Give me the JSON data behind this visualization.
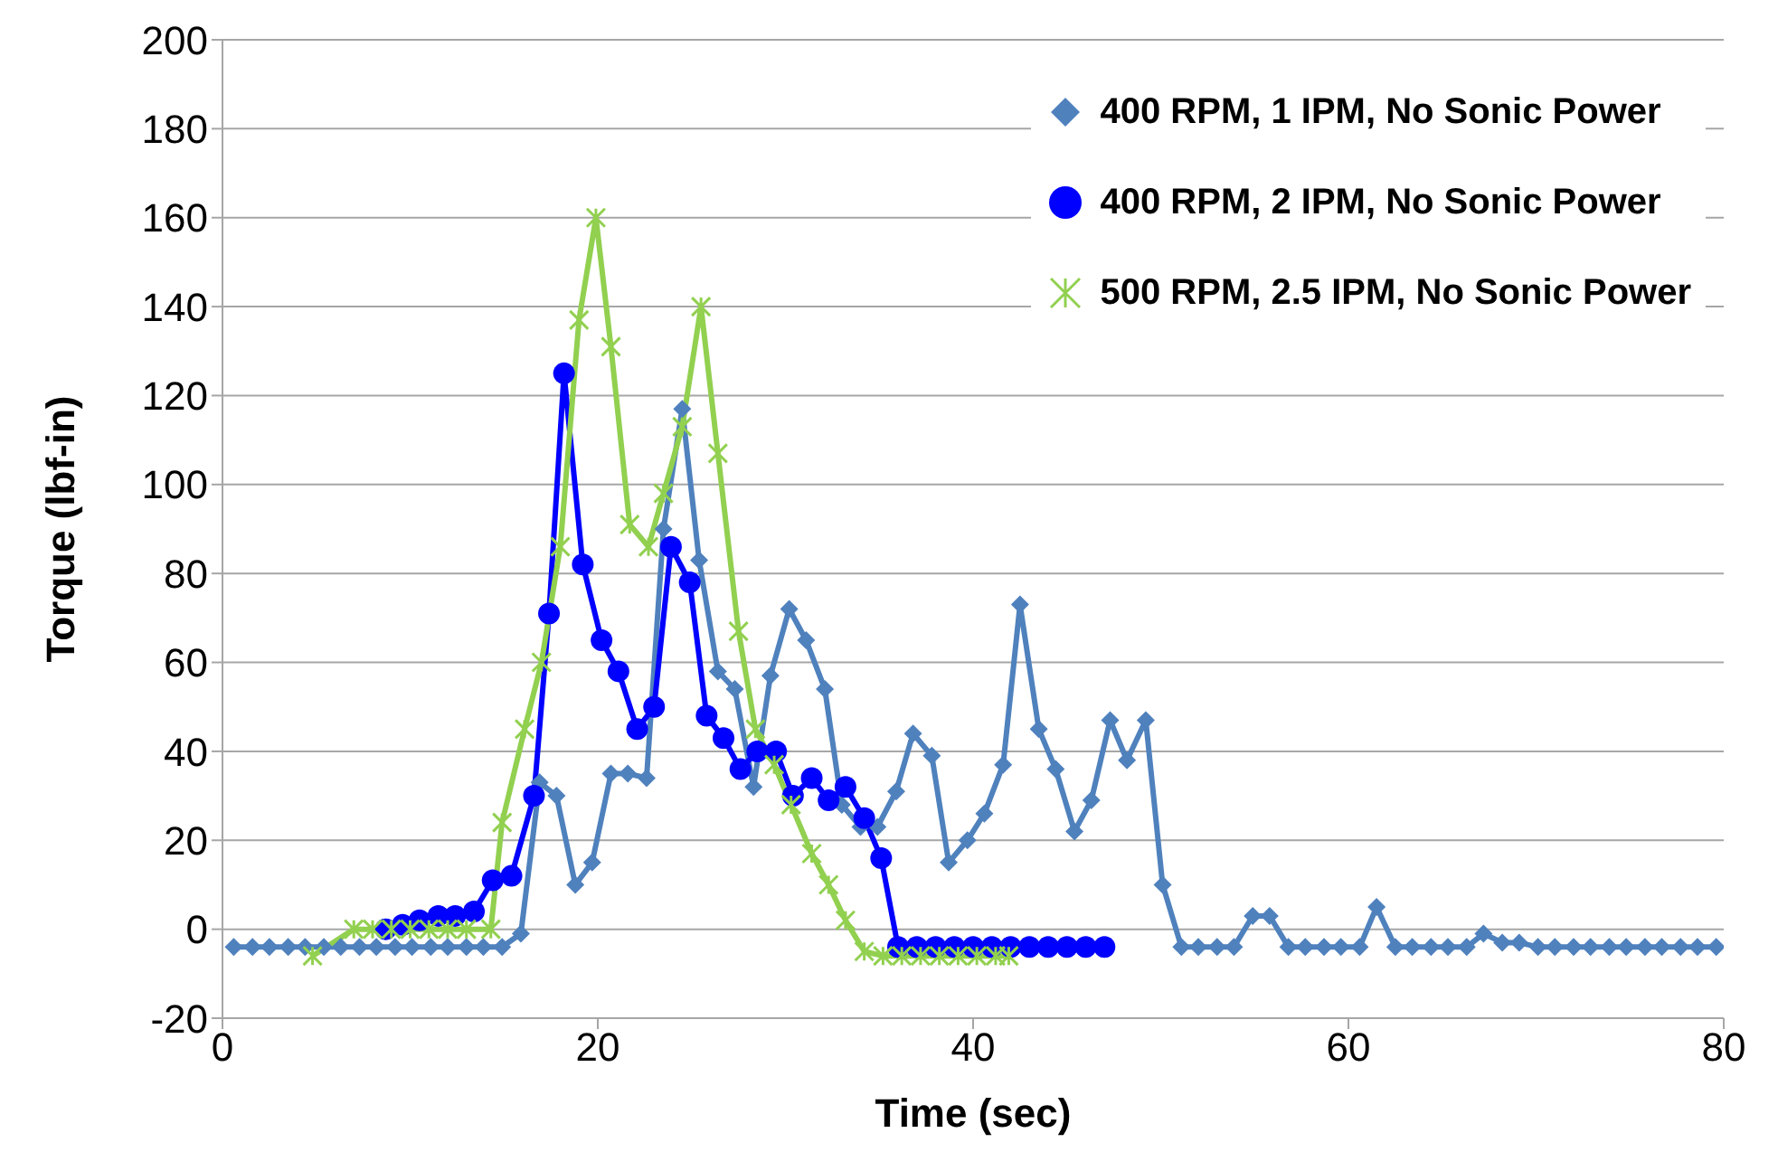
{
  "chart_data": {
    "type": "line",
    "xlabel": "Time (sec)",
    "ylabel": "Torque (lbf-in)",
    "xlim": [
      0,
      80
    ],
    "xticks": [
      0,
      20,
      40,
      60,
      80
    ],
    "ylim": [
      -20,
      200
    ],
    "yticks": [
      -20,
      0,
      20,
      40,
      60,
      80,
      100,
      120,
      140,
      160,
      180,
      200
    ],
    "grid": "y",
    "legend": "top right",
    "series": [
      {
        "name": "400 RPM, 1 IPM, No Sonic Power",
        "color": "#4f81bd",
        "marker": "diamond",
        "x": [
          0.6,
          1.6,
          2.5,
          3.5,
          4.4,
          5.4,
          6.3,
          7.3,
          8.2,
          9.2,
          10.1,
          11.1,
          12.0,
          13.0,
          13.9,
          14.9,
          15.9,
          16.9,
          17.8,
          18.8,
          19.7,
          20.7,
          21.6,
          22.6,
          23.5,
          24.5,
          25.4,
          26.4,
          27.3,
          28.3,
          29.2,
          30.2,
          31.1,
          32.1,
          33.0,
          34.0,
          34.9,
          35.9,
          36.8,
          37.8,
          38.7,
          39.7,
          40.6,
          41.6,
          42.5,
          43.5,
          44.4,
          45.4,
          46.3,
          47.3,
          48.2,
          49.2,
          50.1,
          51.1,
          52.0,
          53.0,
          53.9,
          54.9,
          55.8,
          56.8,
          57.7,
          58.7,
          59.6,
          60.6,
          61.5,
          62.5,
          63.4,
          64.4,
          65.3,
          66.3,
          67.2,
          68.2,
          69.1,
          70.1,
          71.0,
          72.0,
          72.9,
          73.9,
          74.8,
          75.8,
          76.7,
          77.7,
          78.6,
          79.6
        ],
        "values": [
          -4,
          -4,
          -4,
          -4,
          -4,
          -4,
          -4,
          -4,
          -4,
          -4,
          -4,
          -4,
          -4,
          -4,
          -4,
          -4,
          -1,
          33,
          30,
          10,
          15,
          35,
          35,
          34,
          90,
          117,
          83,
          58,
          54,
          32,
          57,
          72,
          65,
          54,
          28,
          23,
          23,
          31,
          44,
          39,
          15,
          20,
          26,
          37,
          73,
          45,
          36,
          22,
          29,
          47,
          38,
          47,
          10,
          -4,
          -4,
          -4,
          -4,
          3,
          3,
          -4,
          -4,
          -4,
          -4,
          -4,
          5,
          -4,
          -4,
          -4,
          -4,
          -4,
          -1,
          -3,
          -3,
          -4,
          -4,
          -4,
          -4,
          -4,
          -4,
          -4,
          -4,
          -4,
          -4,
          -4
        ]
      },
      {
        "name": "400 RPM, 2 IPM, No Sonic Power",
        "color": "#0000ff",
        "marker": "circle",
        "x": [
          8.7,
          9.6,
          10.5,
          11.5,
          12.4,
          13.4,
          14.4,
          15.4,
          16.6,
          17.4,
          18.2,
          19.2,
          20.2,
          21.1,
          22.1,
          23.0,
          23.9,
          24.9,
          25.8,
          26.7,
          27.6,
          28.5,
          29.5,
          30.4,
          31.4,
          32.3,
          33.2,
          34.2,
          35.1,
          36.0,
          37.0,
          38.0,
          39.0,
          40.0,
          41.0,
          42.0,
          43.0,
          44.0,
          45.0,
          46.0,
          47.0
        ],
        "values": [
          0,
          1,
          2,
          3,
          3,
          4,
          11,
          12,
          30,
          71,
          125,
          82,
          65,
          58,
          45,
          50,
          86,
          78,
          48,
          43,
          36,
          40,
          40,
          30,
          34,
          29,
          32,
          25,
          16,
          -4,
          -4,
          -4,
          -4,
          -4,
          -4,
          -4,
          -4,
          -4,
          -4,
          -4,
          -4
        ]
      },
      {
        "name": "500 RPM, 2.5 IPM, No Sonic Power",
        "color": "#92d050",
        "marker": "cross",
        "x": [
          4.8,
          7.0,
          8.0,
          9.0,
          10.0,
          11.0,
          12.0,
          13.0,
          14.3,
          14.9,
          16.1,
          17.0,
          18.0,
          19.0,
          19.9,
          20.7,
          21.7,
          22.7,
          23.5,
          24.5,
          25.5,
          26.4,
          27.5,
          28.4,
          29.4,
          30.3,
          31.4,
          32.3,
          33.2,
          34.2,
          35.2,
          36.2,
          37.2,
          38.2,
          39.2,
          40.2,
          41.2,
          41.9
        ],
        "values": [
          -6,
          0,
          0,
          0,
          0,
          0,
          0,
          0,
          0,
          24,
          45,
          60,
          86,
          137,
          160,
          131,
          91,
          86,
          98,
          113,
          140,
          107,
          67,
          45,
          37,
          28,
          17,
          10,
          2,
          -5,
          -6,
          -6,
          -6,
          -6,
          -6,
          -6,
          -6,
          -6
        ]
      }
    ]
  }
}
